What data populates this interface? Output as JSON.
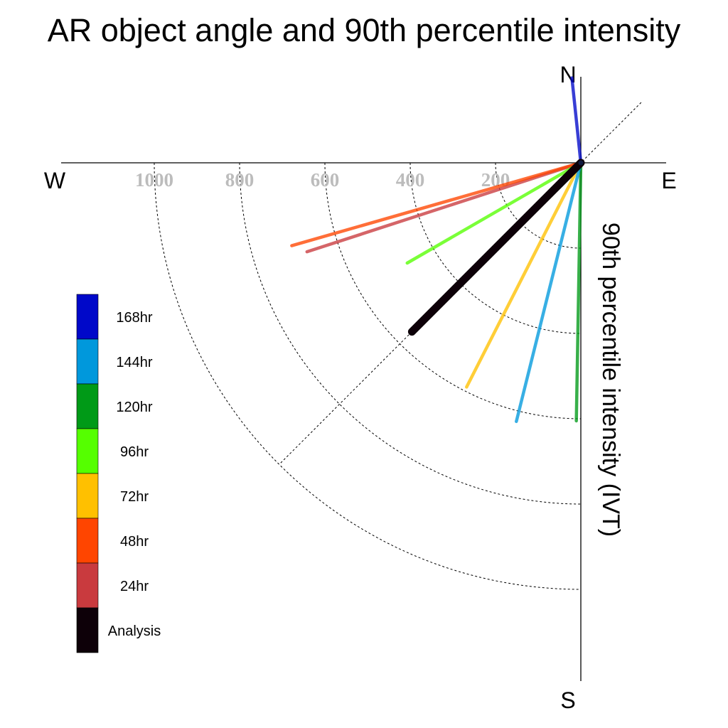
{
  "chart_data": {
    "type": "polar-line",
    "title": "AR object angle and 90th percentile intensity",
    "radial_label": "90th percentile intensity (IVT)",
    "compass": {
      "north": "N",
      "south": "S",
      "east": "E",
      "west": "W"
    },
    "radial_ticks": [
      200,
      400,
      600,
      800,
      1000
    ],
    "radial_tick_labels": [
      "200",
      "400",
      "600",
      "800",
      "1000"
    ],
    "rlim": [
      0,
      1000
    ],
    "series": [
      {
        "name": "Analysis",
        "angle_deg": 225,
        "intensity": 560,
        "color": "#0d0008"
      },
      {
        "name": "24hr",
        "angle_deg": 252,
        "intensity": 675,
        "color": "#c93a3e"
      },
      {
        "name": "48hr",
        "angle_deg": 254,
        "intensity": 705,
        "color": "#ff4500"
      },
      {
        "name": "72hr",
        "angle_deg": 207,
        "intensity": 590,
        "color": "#ffc000"
      },
      {
        "name": "96hr",
        "angle_deg": 240,
        "intensity": 470,
        "color": "#55ff00"
      },
      {
        "name": "120hr",
        "angle_deg": 181,
        "intensity": 605,
        "color": "#009a17"
      },
      {
        "name": "144hr",
        "angle_deg": 194,
        "intensity": 625,
        "color": "#0098dc"
      },
      {
        "name": "168hr",
        "angle_deg": 354,
        "intensity": 200,
        "color": "#0008c9"
      }
    ],
    "legend": {
      "placement": "left",
      "entries": [
        "168hr",
        "144hr",
        "120hr",
        "96hr",
        "72hr",
        "48hr",
        "24hr",
        "Analysis"
      ]
    }
  }
}
